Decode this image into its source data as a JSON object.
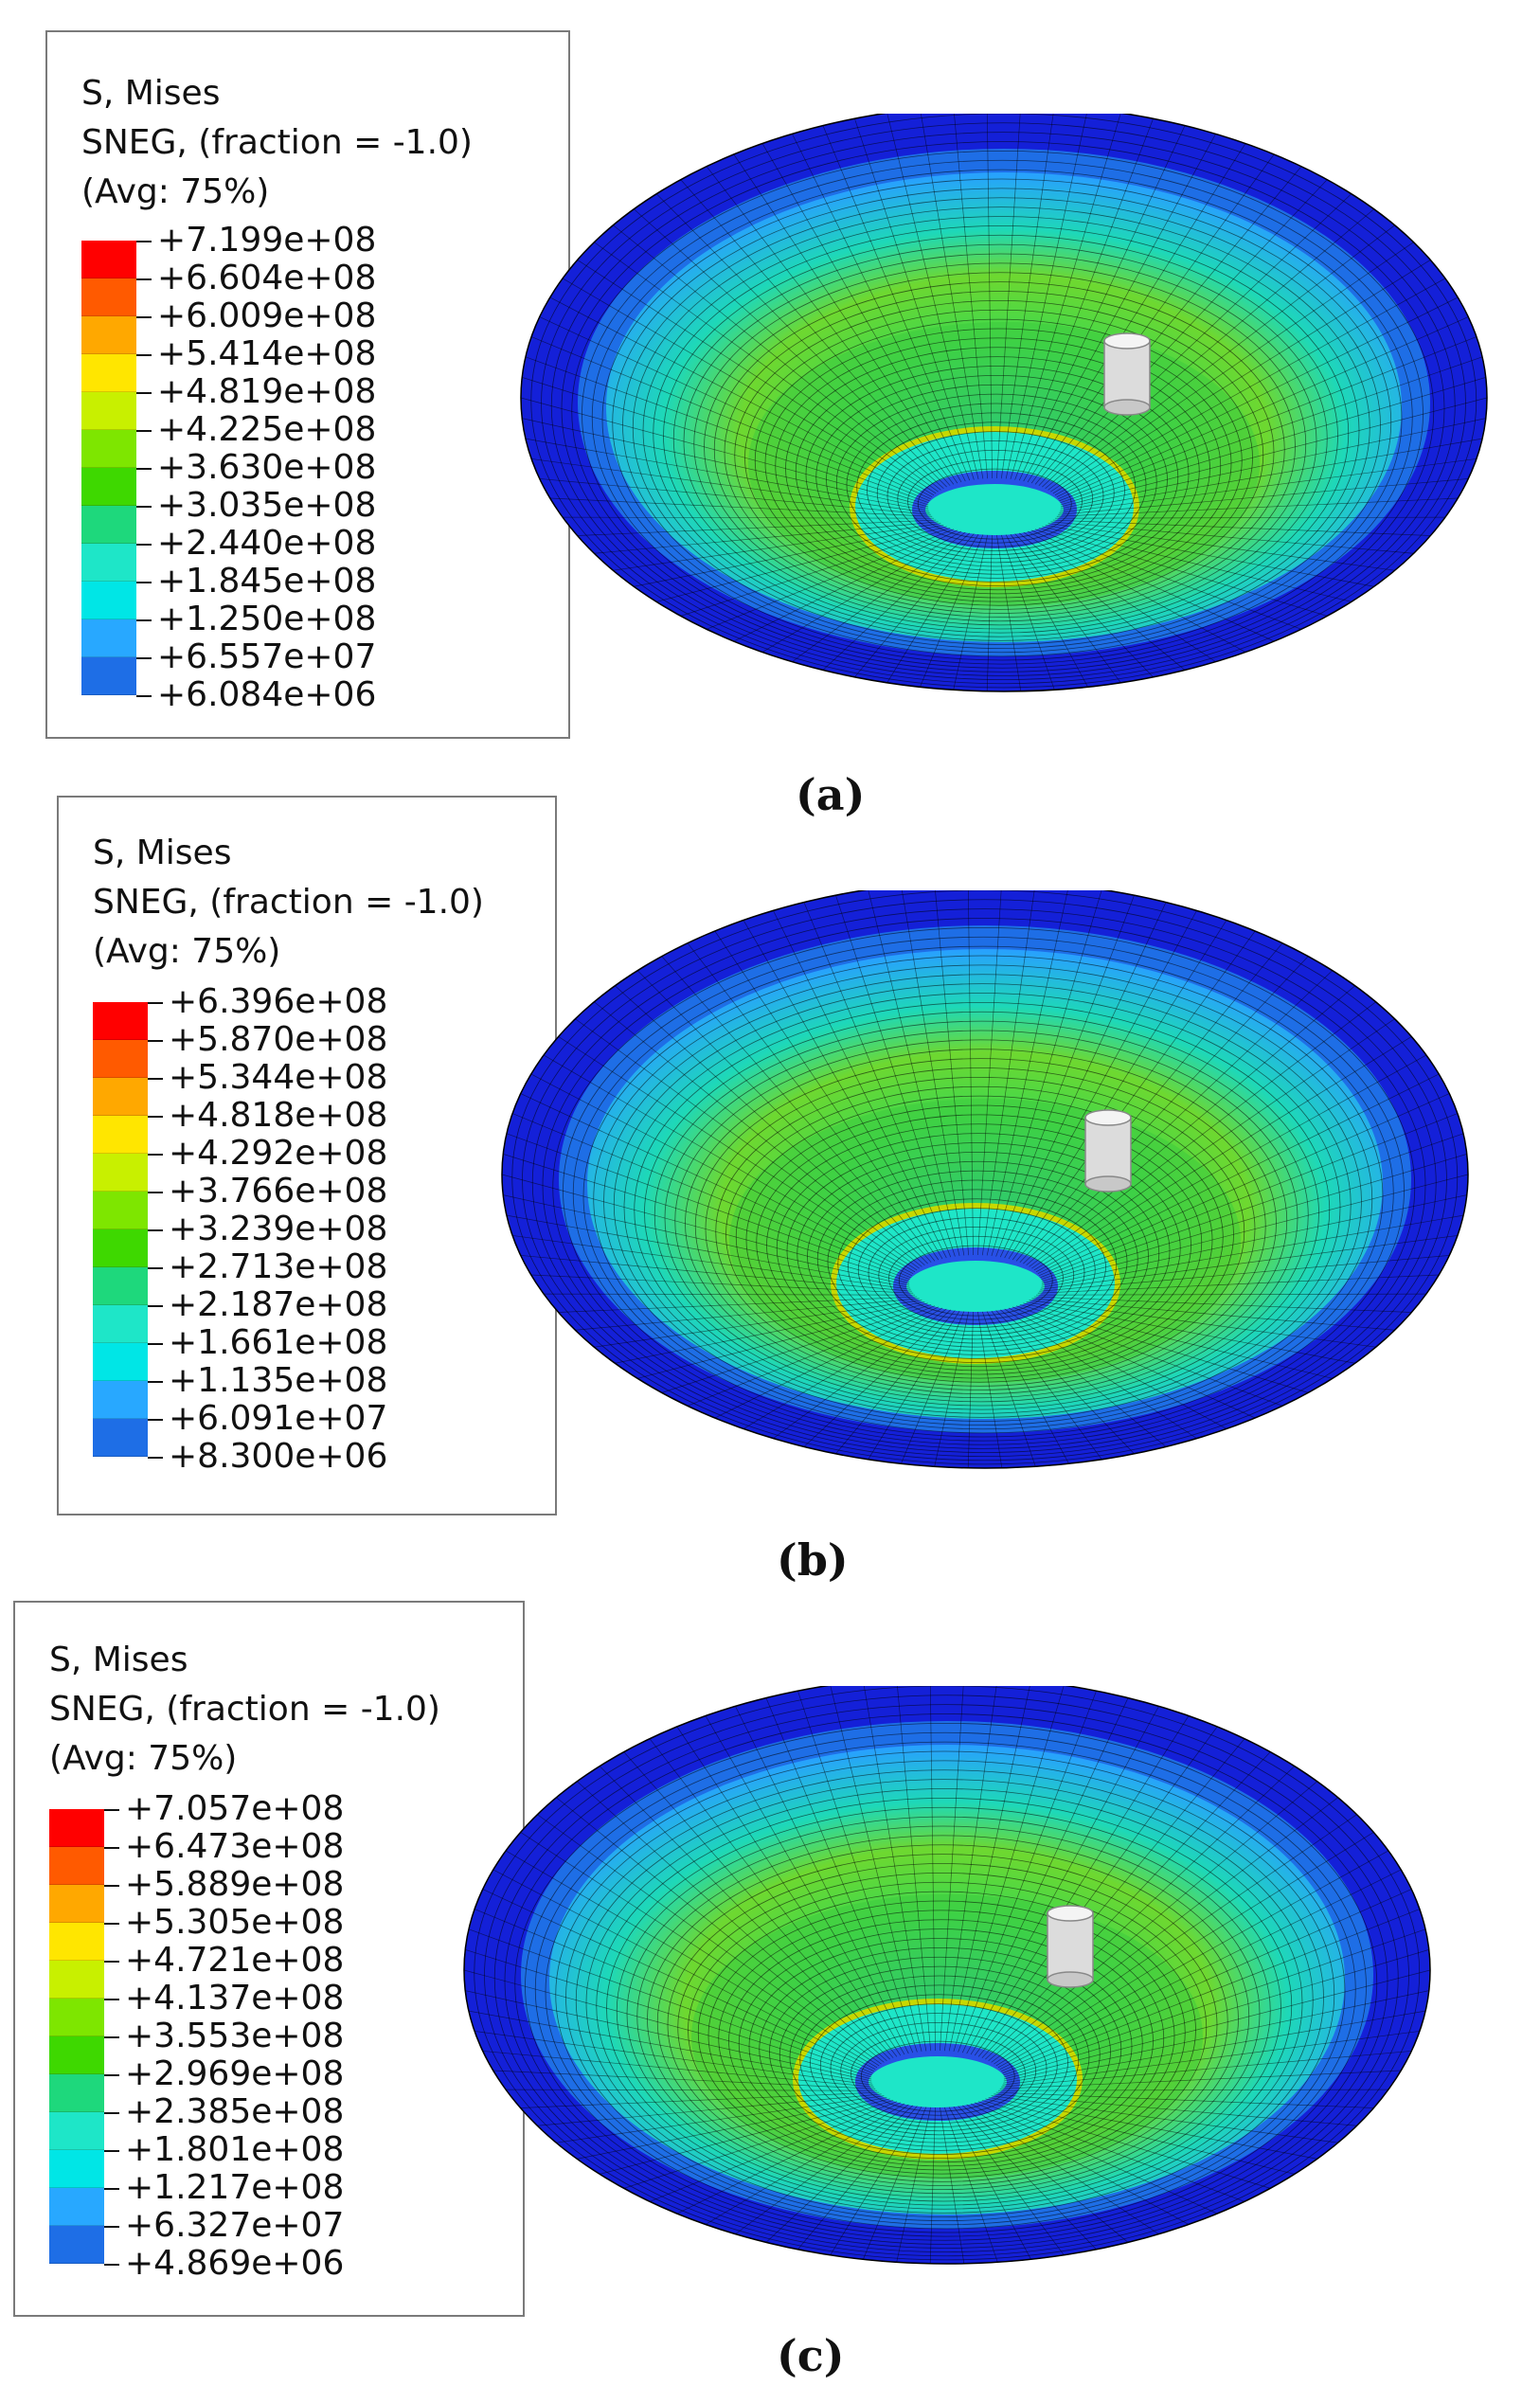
{
  "panels": [
    {
      "legend": {
        "title_lines": [
          "S, Mises",
          "SNEG, (fraction = -1.0)",
          "(Avg: 75%)"
        ],
        "values": [
          "+7.199e+08",
          "+6.604e+08",
          "+6.009e+08",
          "+5.414e+08",
          "+4.819e+08",
          "+4.225e+08",
          "+3.630e+08",
          "+3.035e+08",
          "+2.440e+08",
          "+1.845e+08",
          "+1.250e+08",
          "+6.557e+07",
          "+6.084e+06"
        ]
      },
      "caption": "(a)"
    },
    {
      "legend": {
        "title_lines": [
          "S, Mises",
          "SNEG, (fraction = -1.0)",
          "(Avg: 75%)"
        ],
        "values": [
          "+6.396e+08",
          "+5.870e+08",
          "+5.344e+08",
          "+4.818e+08",
          "+4.292e+08",
          "+3.766e+08",
          "+3.239e+08",
          "+2.713e+08",
          "+2.187e+08",
          "+1.661e+08",
          "+1.135e+08",
          "+6.091e+07",
          "+8.300e+06"
        ]
      },
      "caption": "(b)"
    },
    {
      "legend": {
        "title_lines": [
          "S, Mises",
          "SNEG, (fraction = -1.0)",
          "(Avg: 75%)"
        ],
        "values": [
          "+7.057e+08",
          "+6.473e+08",
          "+5.889e+08",
          "+5.305e+08",
          "+4.721e+08",
          "+4.137e+08",
          "+3.553e+08",
          "+2.969e+08",
          "+2.385e+08",
          "+1.801e+08",
          "+1.217e+08",
          "+6.327e+07",
          "+4.869e+06"
        ]
      },
      "caption": "(c)"
    }
  ],
  "colormap": [
    "#ff0000",
    "#ff5a00",
    "#ffa800",
    "#ffe600",
    "#c8f000",
    "#7ee600",
    "#3ed800",
    "#1ed87c",
    "#1ee6c8",
    "#00e6e6",
    "#28a8ff",
    "#1e6ee6",
    "#0000ff"
  ]
}
